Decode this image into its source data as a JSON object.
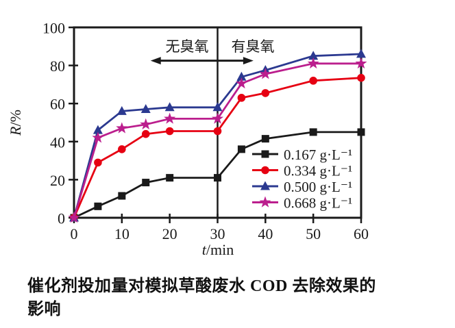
{
  "figure": {
    "caption_lines": [
      "催化剂投加量对模拟草酸废水 COD 去除效果的",
      "影响"
    ],
    "caption_full": "催化剂投加量对模拟草酸废水 COD 去除效果的影响"
  },
  "chart_data": {
    "type": "line",
    "title": "",
    "xlabel_var": "t",
    "xlabel_rest": "/min",
    "ylabel_var": "R",
    "ylabel_rest": "/%",
    "xlim": [
      0,
      60
    ],
    "ylim": [
      0,
      100
    ],
    "x_ticks": [
      0,
      10,
      20,
      30,
      40,
      50,
      60
    ],
    "y_ticks": [
      0,
      20,
      40,
      60,
      80,
      100
    ],
    "grid": false,
    "legend_position": "lower right",
    "x": [
      0,
      5,
      10,
      15,
      20,
      30,
      35,
      40,
      50,
      60
    ],
    "series": [
      {
        "name": "0.167 g·L⁻¹",
        "marker": "square",
        "color": "#1a1a1a",
        "values": [
          0,
          6,
          11.5,
          18.5,
          21,
          21,
          36,
          41.5,
          45,
          45
        ]
      },
      {
        "name": "0.334 g·L⁻¹",
        "marker": "circle",
        "color": "#e60012",
        "values": [
          0,
          29,
          36,
          44,
          45.5,
          45.5,
          63,
          65.5,
          72,
          73.5
        ]
      },
      {
        "name": "0.500 g·L⁻¹",
        "marker": "triangle",
        "color": "#2b3990",
        "values": [
          0,
          46,
          56,
          57,
          58,
          58,
          74,
          77.5,
          85,
          86
        ]
      },
      {
        "name": "0.668 g·L⁻¹",
        "marker": "star",
        "color": "#bb1e8d",
        "values": [
          0,
          42,
          47,
          49,
          52,
          52,
          70.5,
          75.5,
          81,
          81
        ]
      }
    ],
    "divider_x": 30,
    "annotations": {
      "left_label": "无臭氧",
      "right_label": "有臭氧",
      "arrow_x_span": [
        16,
        37.5
      ],
      "arrow_y": 82.5,
      "label_y": 90
    },
    "frame_color": "#1a1a1a"
  }
}
